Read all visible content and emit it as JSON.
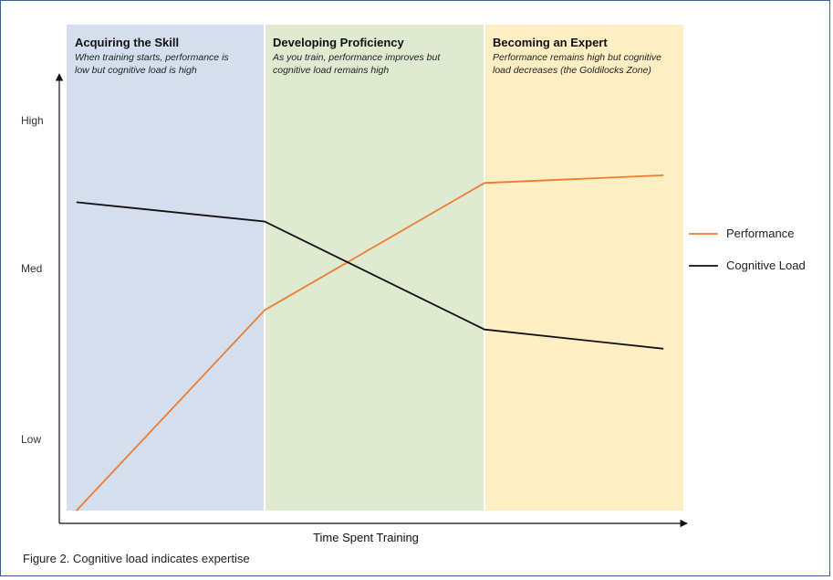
{
  "chart_data": {
    "type": "line",
    "zones": [
      {
        "title": "Acquiring the Skill",
        "subtitle_lines": [
          "When training starts, performance is",
          "low but cognitive load is high"
        ],
        "color": "#d4deef"
      },
      {
        "title": "Developing Proficiency",
        "subtitle_lines": [
          "As you train, performance improves but",
          "cognitive load remains high"
        ],
        "color": "#dfead1"
      },
      {
        "title": "Becoming an Expert",
        "subtitle_lines": [
          "Performance remains high but cognitive",
          "load decreases (the Goldilocks Zone)"
        ],
        "color": "#fdeec4"
      }
    ],
    "y_tick_labels": [
      "High",
      "Med",
      "Low"
    ],
    "x_label": "Time Spent Training",
    "series": [
      {
        "name": "Performance",
        "color": "#ed7d31",
        "points": [
          [
            0.05,
            0.0
          ],
          [
            1.0,
            0.52
          ],
          [
            2.0,
            0.85
          ],
          [
            2.9,
            0.87
          ]
        ]
      },
      {
        "name": "Cognitive Load",
        "color": "#111111",
        "points": [
          [
            0.05,
            0.8
          ],
          [
            1.0,
            0.75
          ],
          [
            2.0,
            0.47
          ],
          [
            2.9,
            0.42
          ]
        ]
      }
    ],
    "legend_position": "right"
  },
  "caption": {
    "lead": "Figure 2.",
    "text": " Cognitive load indicates expertise"
  }
}
